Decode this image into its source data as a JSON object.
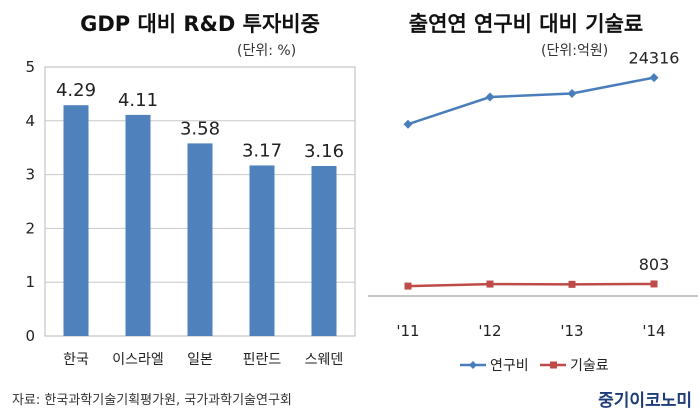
{
  "chart_data": [
    {
      "type": "bar",
      "title": "GDP 대비 R&D 투자비중",
      "unit_label": "(단위: %)",
      "categories": [
        "한국",
        "이스라엘",
        "일본",
        "핀란드",
        "스웨덴"
      ],
      "values": [
        4.29,
        4.11,
        3.58,
        3.17,
        3.16
      ],
      "data_labels": [
        "4.29",
        "4.11",
        "3.58",
        "3.17",
        "3.16"
      ],
      "ylim": [
        0,
        5
      ],
      "yticks": [
        "0",
        "1",
        "2",
        "3",
        "4",
        "5"
      ],
      "grid": "horizontal",
      "bar_color": "#4f81bd"
    },
    {
      "type": "line",
      "title": "출연연 연구비 대비 기술료",
      "unit_label": "(단위:억원)",
      "categories": [
        "'11",
        "'12",
        "'13",
        "'14"
      ],
      "series": [
        {
          "name": "연구비",
          "values": [
            19000,
            22100,
            22500,
            24316
          ],
          "color": "#4a7ebb",
          "marker": "diamond"
        },
        {
          "name": "기술료",
          "values": [
            560,
            790,
            760,
            803
          ],
          "color": "#be4b48",
          "marker": "square"
        }
      ],
      "data_labels": [
        "24316",
        "803"
      ],
      "y_axis_shown": false,
      "legend_position": "bottom"
    }
  ],
  "footer": {
    "source": "자료: 한국과학기술기획평가원, 국가과학기술연구회",
    "brand": "중기이코노미"
  }
}
